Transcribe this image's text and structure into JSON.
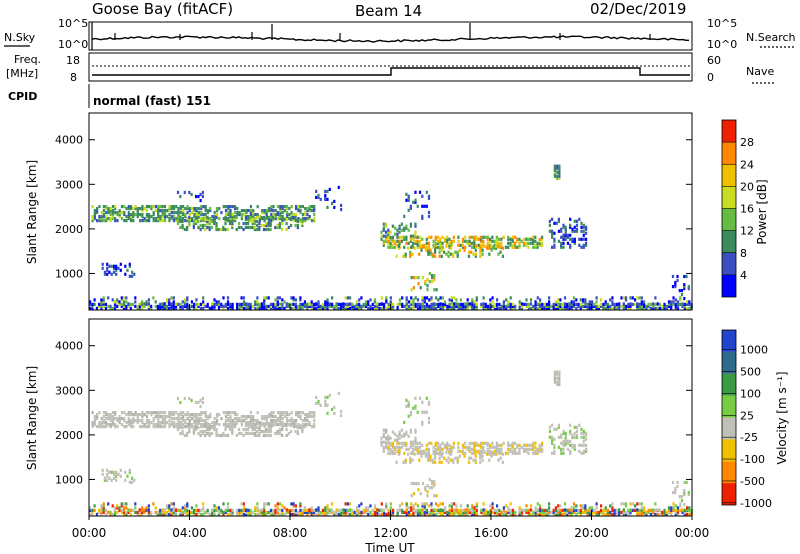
{
  "header": {
    "site": "Goose Bay (fitACF)",
    "beam": "Beam 14",
    "date": "02/Dec/2019"
  },
  "noise_panel": {
    "left_label": "N.Sky",
    "right_label": "N.Search",
    "left_ticks": [
      "10^5",
      "10^0"
    ],
    "right_ticks": [
      "10^5",
      "10^0"
    ]
  },
  "freq_panel": {
    "left_label_line1": "Freq.",
    "left_label_line2": "[MHz]",
    "right_label": "Nave",
    "left_ticks": [
      "18",
      "8"
    ],
    "right_ticks": [
      "60",
      "0"
    ]
  },
  "cpid": {
    "label": "CPID",
    "value": "normal (fast) 151"
  },
  "x_axis": {
    "ticks": [
      "00:00",
      "04:00",
      "08:00",
      "12:00",
      "16:00",
      "20:00",
      "00:00"
    ],
    "label": "Time UT"
  },
  "chart_data": [
    {
      "type": "heatmap",
      "panel": "power",
      "ylabel": "Slant Range [km]",
      "yticks": [
        "1000",
        "2000",
        "3000",
        "4000"
      ],
      "ylim": [
        180,
        4600
      ],
      "xlim_hours": [
        0,
        24
      ],
      "colorbar": {
        "label": "Power [dB]",
        "ticks": [
          "4",
          "8",
          "12",
          "16",
          "20",
          "24",
          "28"
        ],
        "colors": [
          "#0000ff",
          "#3a50c0",
          "#3b8a5c",
          "#66bb44",
          "#c8dd22",
          "#f0c000",
          "#ff8800",
          "#ee2200"
        ]
      },
      "regions": [
        {
          "t": [
            0.1,
            9.0
          ],
          "range": [
            2150,
            2500
          ],
          "level": "green/blue ~12 dB"
        },
        {
          "t": [
            0.5,
            1.8
          ],
          "range": [
            900,
            1200
          ],
          "level": "blue ~6 dB"
        },
        {
          "t": [
            11.6,
            18.0
          ],
          "range": [
            1450,
            2000
          ],
          "level": "yellow-green ~16 dB"
        },
        {
          "t": [
            18.3,
            19.8
          ],
          "range": [
            1550,
            2200
          ],
          "level": "blue ~8 dB"
        },
        {
          "t": [
            18.5,
            18.7
          ],
          "range": [
            3100,
            3400
          ],
          "level": "green ~12 dB"
        },
        {
          "t": [
            0,
            24
          ],
          "range": [
            180,
            450
          ],
          "level": "ground scatter band"
        }
      ]
    },
    {
      "type": "heatmap",
      "panel": "velocity",
      "ylabel": "Slant Range [km]",
      "yticks": [
        "1000",
        "2000",
        "3000",
        "4000"
      ],
      "ylim": [
        180,
        4600
      ],
      "xlim_hours": [
        0,
        24
      ],
      "colorbar": {
        "label": "Velocity  [m s⁻¹]",
        "ticks": [
          "1000",
          "500",
          "100",
          "25",
          "-25",
          "-100",
          "-500",
          "-1000"
        ],
        "colors": [
          "#2244cc",
          "#2e6a8a",
          "#3a9a44",
          "#77cc44",
          "#c0c0b8",
          "#f0c000",
          "#ff8800",
          "#ee2200"
        ]
      }
    }
  ]
}
